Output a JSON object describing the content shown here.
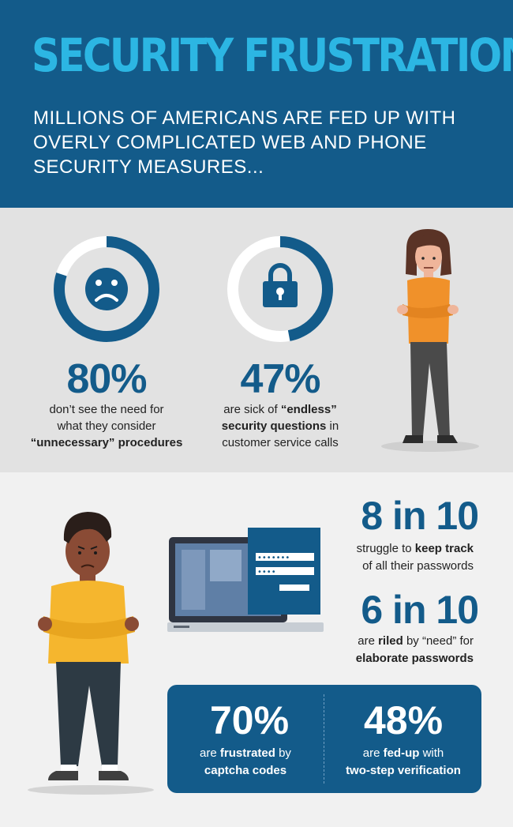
{
  "header": {
    "title": "SECURITY FRUSTRATION",
    "subtitle": "MILLIONS OF AMERICANS ARE FED UP WITH OVERLY COMPLICATED WEB AND PHONE SECURITY MEASURES..."
  },
  "stats": [
    {
      "value": "80%",
      "fraction": 0.8,
      "icon": "sad-face-icon",
      "lines": [
        [
          {
            "t": "don’t see the need for",
            "b": false
          }
        ],
        [
          {
            "t": "what they consider",
            "b": false
          }
        ],
        [
          {
            "t": "“unnecessary” procedures",
            "b": true
          }
        ]
      ]
    },
    {
      "value": "47%",
      "fraction": 0.47,
      "icon": "padlock-icon",
      "lines": [
        [
          {
            "t": "are sick of ",
            "b": false
          },
          {
            "t": "“endless”",
            "b": true
          }
        ],
        [
          {
            "t": "security questions",
            "b": true
          },
          {
            "t": " in",
            "b": false
          }
        ],
        [
          {
            "t": "customer service calls",
            "b": false
          }
        ]
      ]
    }
  ],
  "ratios": [
    {
      "value": "8 in 10",
      "lines": [
        [
          {
            "t": "struggle to ",
            "b": false
          },
          {
            "t": "keep track",
            "b": true
          }
        ],
        [
          {
            "t": "of all their passwords",
            "b": false
          }
        ]
      ]
    },
    {
      "value": "6 in 10",
      "lines": [
        [
          {
            "t": "are ",
            "b": false
          },
          {
            "t": "riled",
            "b": true
          },
          {
            "t": " by “need” for",
            "b": false
          }
        ],
        [
          {
            "t": "elaborate passwords",
            "b": true
          }
        ]
      ]
    }
  ],
  "box_stats": [
    {
      "value": "70%",
      "lines": [
        [
          {
            "t": "are ",
            "b": false
          },
          {
            "t": "frustrated",
            "b": true
          },
          {
            "t": " by",
            "b": false
          }
        ],
        [
          {
            "t": "captcha codes",
            "b": true
          }
        ]
      ]
    },
    {
      "value": "48%",
      "lines": [
        [
          {
            "t": "are ",
            "b": false
          },
          {
            "t": "fed-up",
            "b": true
          },
          {
            "t": " with",
            "b": false
          }
        ],
        [
          {
            "t": "two-step verification",
            "b": true
          }
        ]
      ]
    }
  ],
  "login_card": {
    "password_1": "•••••••",
    "password_2": "••••"
  },
  "colors": {
    "brand_blue": "#135b8a",
    "title_cyan": "#2cb6e3",
    "ring_track": "#ffffff",
    "woman_shirt": "#f0912a",
    "man_sweater": "#f5b62e"
  }
}
